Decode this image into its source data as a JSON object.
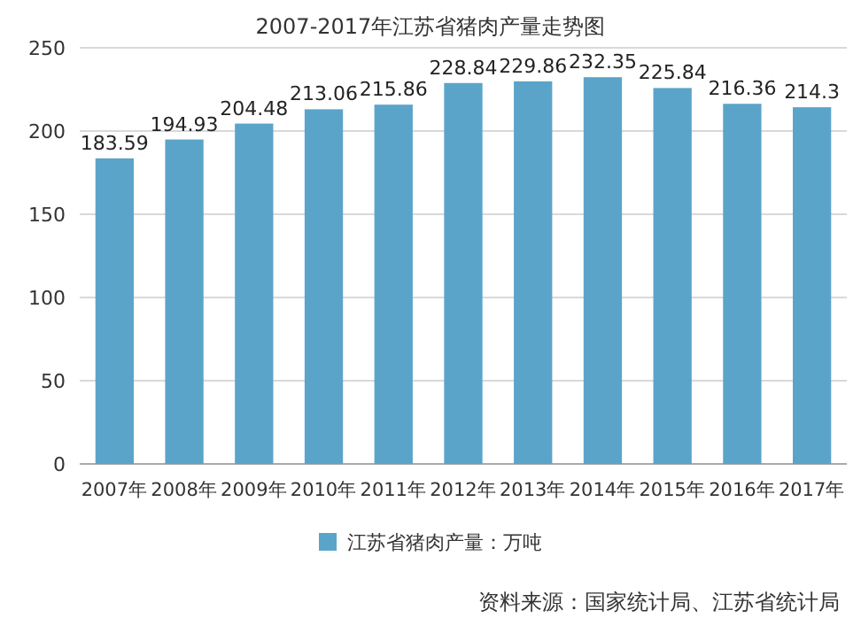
{
  "chart_data": {
    "type": "bar",
    "title": "2007-2017年江苏省猪肉产量走势图",
    "categories": [
      "2007年",
      "2008年",
      "2009年",
      "2010年",
      "2011年",
      "2012年",
      "2013年",
      "2014年",
      "2015年",
      "2016年",
      "2017年"
    ],
    "series": [
      {
        "name": "江苏省猪肉产量：万吨",
        "color": "#5ba4c9",
        "values": [
          183.59,
          194.93,
          204.48,
          213.06,
          215.86,
          228.84,
          229.86,
          232.35,
          225.84,
          216.36,
          214.3
        ]
      }
    ],
    "ylim": [
      0,
      250
    ],
    "yticks": [
      0,
      50,
      100,
      150,
      200,
      250
    ],
    "grid": "y",
    "legend": "bottom",
    "data_labels": true,
    "annotations": [
      "资料来源：国家统计局、江苏省统计局"
    ]
  }
}
